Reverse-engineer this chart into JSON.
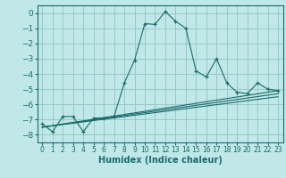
{
  "xlabel": "Humidex (Indice chaleur)",
  "xlim": [
    -0.5,
    23.5
  ],
  "ylim": [
    -8.5,
    0.5
  ],
  "bg_color": "#c0e8e8",
  "grid_color": "#98c8c8",
  "line_color": "#1a6b6b",
  "x_ticks": [
    0,
    1,
    2,
    3,
    4,
    5,
    6,
    7,
    8,
    9,
    10,
    11,
    12,
    13,
    14,
    15,
    16,
    17,
    18,
    19,
    20,
    21,
    22,
    23
  ],
  "y_ticks": [
    0,
    -1,
    -2,
    -3,
    -4,
    -5,
    -6,
    -7,
    -8
  ],
  "main_series": [
    [
      0,
      -7.3
    ],
    [
      1,
      -7.8
    ],
    [
      2,
      -6.8
    ],
    [
      3,
      -6.8
    ],
    [
      4,
      -7.8
    ],
    [
      5,
      -6.9
    ],
    [
      6,
      -6.9
    ],
    [
      7,
      -6.8
    ],
    [
      8,
      -4.6
    ],
    [
      9,
      -3.1
    ],
    [
      10,
      -0.7
    ],
    [
      11,
      -0.75
    ],
    [
      12,
      0.1
    ],
    [
      13,
      -0.55
    ],
    [
      14,
      -1.0
    ],
    [
      15,
      -3.8
    ],
    [
      16,
      -4.2
    ],
    [
      17,
      -3.0
    ],
    [
      18,
      -4.6
    ],
    [
      19,
      -5.2
    ],
    [
      20,
      -5.3
    ],
    [
      21,
      -4.6
    ],
    [
      22,
      -5.0
    ],
    [
      23,
      -5.1
    ]
  ],
  "ref_lines": [
    [
      [
        0,
        -7.5
      ],
      [
        23,
        -5.3
      ]
    ],
    [
      [
        0,
        -7.5
      ],
      [
        23,
        -5.5
      ]
    ],
    [
      [
        0,
        -7.5
      ],
      [
        23,
        -5.1
      ]
    ]
  ]
}
